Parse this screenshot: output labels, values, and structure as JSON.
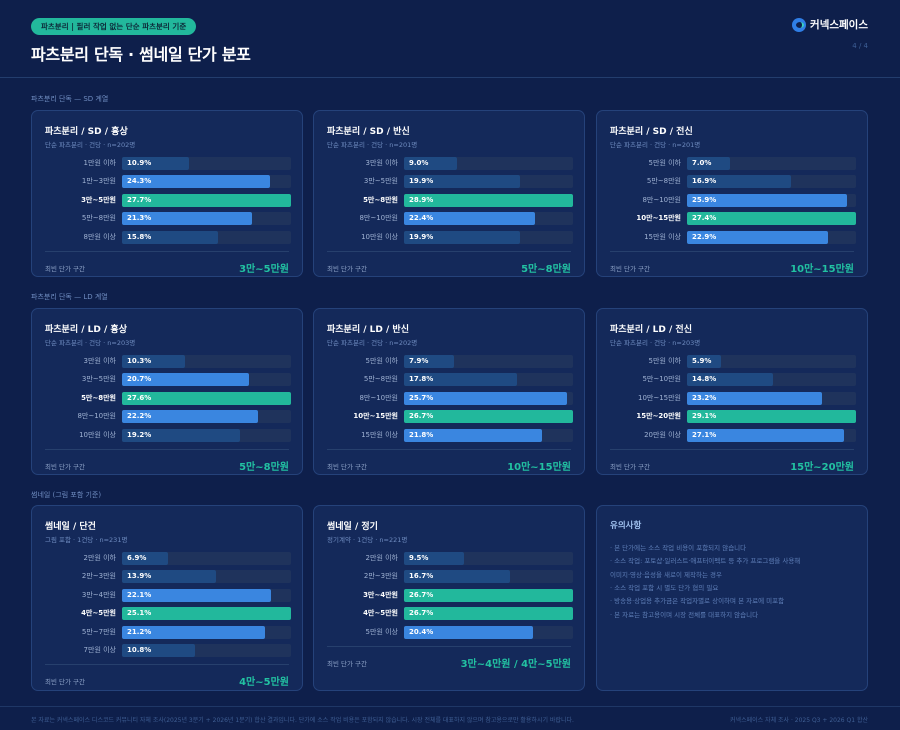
{
  "header": {
    "pill": "파츠분리 | 필러 작업 없는 단순 파츠분리 기준",
    "title": "파츠분리 단독 · 썸네일 단가 분포",
    "logo": "커넥스페이스",
    "page": "4 / 4"
  },
  "colors": {
    "background": "#0e1f4b",
    "top": "#22b89c",
    "high": "#3a86e0",
    "low": "#1f4a82",
    "track": "#1f335c"
  },
  "sections": [
    "파츠분리 단독 — SD 계열",
    "파츠분리 단독 — LD 계열",
    "썸네일 (그림 포함 기준)"
  ],
  "footer_label": "최빈 단가 구간",
  "cards": [
    {
      "title": "파츠분리 / SD / 흉상",
      "subtitle": "단순 파츠분리 · 건당 · n=202명",
      "mode": "3만~5만원",
      "rows": [
        {
          "label": "1만원 이하",
          "value": 10.9,
          "text": "10.9%"
        },
        {
          "label": "1만~3만원",
          "value": 24.3,
          "text": "24.3%"
        },
        {
          "label": "3만~5만원",
          "value": 27.7,
          "text": "27.7%"
        },
        {
          "label": "5만~8만원",
          "value": 21.3,
          "text": "21.3%"
        },
        {
          "label": "8만원 이상",
          "value": 15.8,
          "text": "15.8%"
        }
      ]
    },
    {
      "title": "파츠분리 / SD / 반신",
      "subtitle": "단순 파츠분리 · 건당 · n=201명",
      "mode": "5만~8만원",
      "rows": [
        {
          "label": "3만원 이하",
          "value": 9.0,
          "text": "9.0%"
        },
        {
          "label": "3만~5만원",
          "value": 19.9,
          "text": "19.9%"
        },
        {
          "label": "5만~8만원",
          "value": 28.9,
          "text": "28.9%"
        },
        {
          "label": "8만~10만원",
          "value": 22.4,
          "text": "22.4%"
        },
        {
          "label": "10만원 이상",
          "value": 19.9,
          "text": "19.9%"
        }
      ]
    },
    {
      "title": "파츠분리 / SD / 전신",
      "subtitle": "단순 파츠분리 · 건당 · n=201명",
      "mode": "10만~15만원",
      "rows": [
        {
          "label": "5만원 이하",
          "value": 7.0,
          "text": "7.0%"
        },
        {
          "label": "5만~8만원",
          "value": 16.9,
          "text": "16.9%"
        },
        {
          "label": "8만~10만원",
          "value": 25.9,
          "text": "25.9%"
        },
        {
          "label": "10만~15만원",
          "value": 27.4,
          "text": "27.4%"
        },
        {
          "label": "15만원 이상",
          "value": 22.9,
          "text": "22.9%"
        }
      ]
    },
    {
      "title": "파츠분리 / LD / 흉상",
      "subtitle": "단순 파츠분리 · 건당 · n=203명",
      "mode": "5만~8만원",
      "rows": [
        {
          "label": "3만원 이하",
          "value": 10.3,
          "text": "10.3%"
        },
        {
          "label": "3만~5만원",
          "value": 20.7,
          "text": "20.7%"
        },
        {
          "label": "5만~8만원",
          "value": 27.6,
          "text": "27.6%"
        },
        {
          "label": "8만~10만원",
          "value": 22.2,
          "text": "22.2%"
        },
        {
          "label": "10만원 이상",
          "value": 19.2,
          "text": "19.2%"
        }
      ]
    },
    {
      "title": "파츠분리 / LD / 반신",
      "subtitle": "단순 파츠분리 · 건당 · n=202명",
      "mode": "10만~15만원",
      "rows": [
        {
          "label": "5만원 이하",
          "value": 7.9,
          "text": "7.9%"
        },
        {
          "label": "5만~8만원",
          "value": 17.8,
          "text": "17.8%"
        },
        {
          "label": "8만~10만원",
          "value": 25.7,
          "text": "25.7%"
        },
        {
          "label": "10만~15만원",
          "value": 26.7,
          "text": "26.7%"
        },
        {
          "label": "15만원 이상",
          "value": 21.8,
          "text": "21.8%"
        }
      ]
    },
    {
      "title": "파츠분리 / LD / 전신",
      "subtitle": "단순 파츠분리 · 건당 · n=203명",
      "mode": "15만~20만원",
      "rows": [
        {
          "label": "5만원 이하",
          "value": 5.9,
          "text": "5.9%"
        },
        {
          "label": "5만~10만원",
          "value": 14.8,
          "text": "14.8%"
        },
        {
          "label": "10만~15만원",
          "value": 23.2,
          "text": "23.2%"
        },
        {
          "label": "15만~20만원",
          "value": 29.1,
          "text": "29.1%"
        },
        {
          "label": "20만원 이상",
          "value": 27.1,
          "text": "27.1%"
        }
      ]
    },
    {
      "title": "썸네일 / 단건",
      "subtitle": "그림 포함 · 1건당 · n=231명",
      "mode": "4만~5만원",
      "rows": [
        {
          "label": "2만원 이하",
          "value": 6.9,
          "text": "6.9%"
        },
        {
          "label": "2만~3만원",
          "value": 13.9,
          "text": "13.9%"
        },
        {
          "label": "3만~4만원",
          "value": 22.1,
          "text": "22.1%"
        },
        {
          "label": "4만~5만원",
          "value": 25.1,
          "text": "25.1%"
        },
        {
          "label": "5만~7만원",
          "value": 21.2,
          "text": "21.2%"
        },
        {
          "label": "7만원 이상",
          "value": 10.8,
          "text": "10.8%"
        }
      ]
    },
    {
      "title": "썸네일 / 정기",
      "subtitle": "정기계약 · 1건당 · n=221명",
      "mode": "3만~4만원 / 4만~5만원",
      "rows": [
        {
          "label": "2만원 이하",
          "value": 9.5,
          "text": "9.5%"
        },
        {
          "label": "2만~3만원",
          "value": 16.7,
          "text": "16.7%"
        },
        {
          "label": "3만~4만원",
          "value": 26.7,
          "text": "26.7%"
        },
        {
          "label": "4만~5만원",
          "value": 26.7,
          "text": "26.7%"
        },
        {
          "label": "5만원 이상",
          "value": 20.4,
          "text": "20.4%"
        }
      ]
    }
  ],
  "notes": {
    "title": "유의사항",
    "items": [
      "· 본 단가에는 소스 작업 비용이 포함되지 않습니다",
      "· 소스 작업: 포토샵·일러스트·애프터이펙트 등 추가 프로그램을 사용해",
      "  이미지·영상·음성을 새로이 제작하는 경우",
      "· 소스 작업 포함 시 별도 단가 협의 필요",
      "· 방송용·상업용 추가금은 작업자별로 상이하며 본 자료에 미포함",
      "· 본 자료는 참고용이며 시장 전체를 대표하지 않습니다"
    ]
  },
  "footer": {
    "left": "본 자료는 커넥스페이스 디스코드 커뮤니티 자체 조사(2025년 3분기 + 2026년 1분기) 합산 결과입니다. 단가에 소스 작업 비용은 포함되지 않습니다. 시장 전체를 대표하지 않으며 참고용으로만 활용하시기 바랍니다.",
    "right": "커넥스페이스 자체 조사 · 2025 Q3 + 2026 Q1 합산"
  }
}
